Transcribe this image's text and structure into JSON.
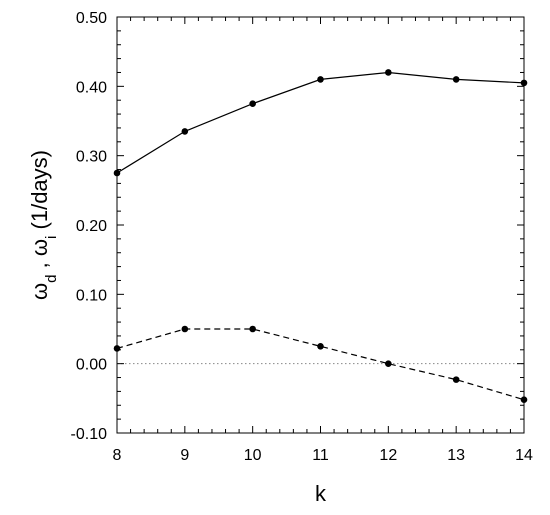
{
  "chart_data": {
    "type": "line",
    "title": "",
    "xlabel": "k",
    "ylabel": {
      "omega": "ω",
      "sub_d": "d",
      "sep": " , ",
      "sub_i": "i",
      "units": " (1/days)"
    },
    "x": [
      8,
      9,
      10,
      11,
      12,
      13,
      14
    ],
    "xlim": [
      8,
      14
    ],
    "ylim": [
      -0.1,
      0.5
    ],
    "xticks": [
      "8",
      "9",
      "10",
      "11",
      "12",
      "13",
      "14"
    ],
    "yticks": [
      {
        "value": 0.5,
        "label": "0.50"
      },
      {
        "value": 0.4,
        "label": "0.40"
      },
      {
        "value": 0.3,
        "label": "0.30"
      },
      {
        "value": 0.2,
        "label": "0.20"
      },
      {
        "value": 0.1,
        "label": "0.10"
      },
      {
        "value": 0.0,
        "label": "0.00"
      },
      {
        "value": -0.1,
        "label": "-0.10"
      }
    ],
    "series": [
      {
        "style": "solid",
        "color": "#000000",
        "values": [
          0.275,
          0.335,
          0.375,
          0.41,
          0.42,
          0.41,
          0.405
        ]
      },
      {
        "style": "dashed",
        "color": "#000000",
        "values": [
          0.022,
          0.05,
          0.05,
          0.025,
          0.0,
          -0.023,
          -0.052
        ]
      }
    ],
    "reference_line": {
      "y": 0.0,
      "style": "dotted",
      "color": "#888888"
    },
    "grid": false
  }
}
